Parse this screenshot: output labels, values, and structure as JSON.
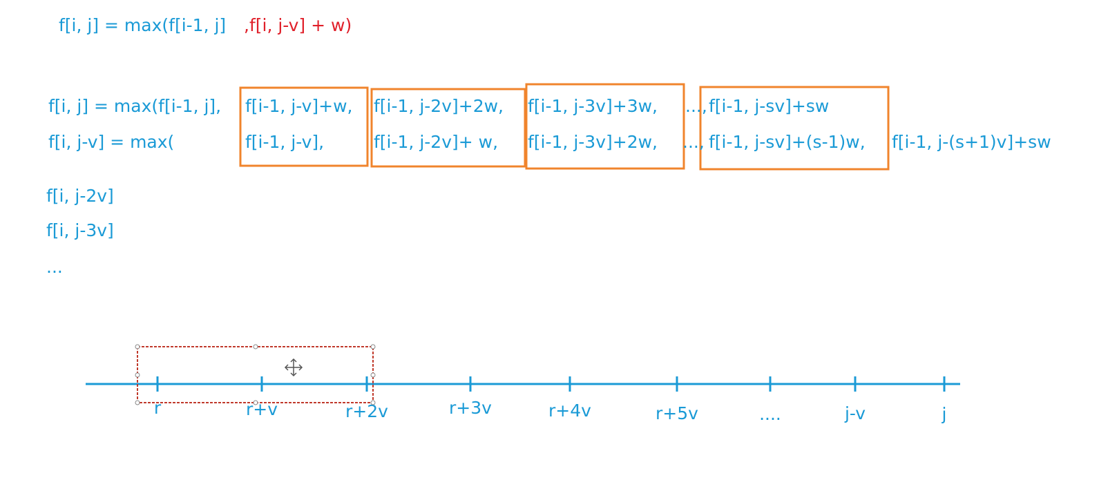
{
  "formula": {
    "blue": "f[i, j] = max(f[i-1, j]",
    "red": ",f[i, j-v] + w)"
  },
  "expansion": {
    "row1": [
      "f[i, j] = max(f[i-1, j],",
      "f[i-1, j-v]+w,",
      "f[i-1, j-2v]+2w,",
      "f[i-1, j-3v]+3w,",
      "...,",
      "f[i-1, j-sv]+sw"
    ],
    "row2": [
      "f[i, j-v] = max(",
      "f[i-1, j-v],",
      "f[i-1, j-2v]+  w,",
      "f[i-1, j-3v]+2w,",
      "...,",
      "f[i-1, j-sv]+(s-1)w,",
      "f[i-1, j-(s+1)v]+sw"
    ]
  },
  "more_lines": [
    "f[i, j-2v]",
    "f[i, j-3v]",
    "..."
  ],
  "number_line": {
    "labels": [
      "r",
      "r+v",
      "r+2v",
      "r+3v",
      "r+4v",
      "r+5v",
      "....",
      "j-v",
      "j"
    ]
  }
}
